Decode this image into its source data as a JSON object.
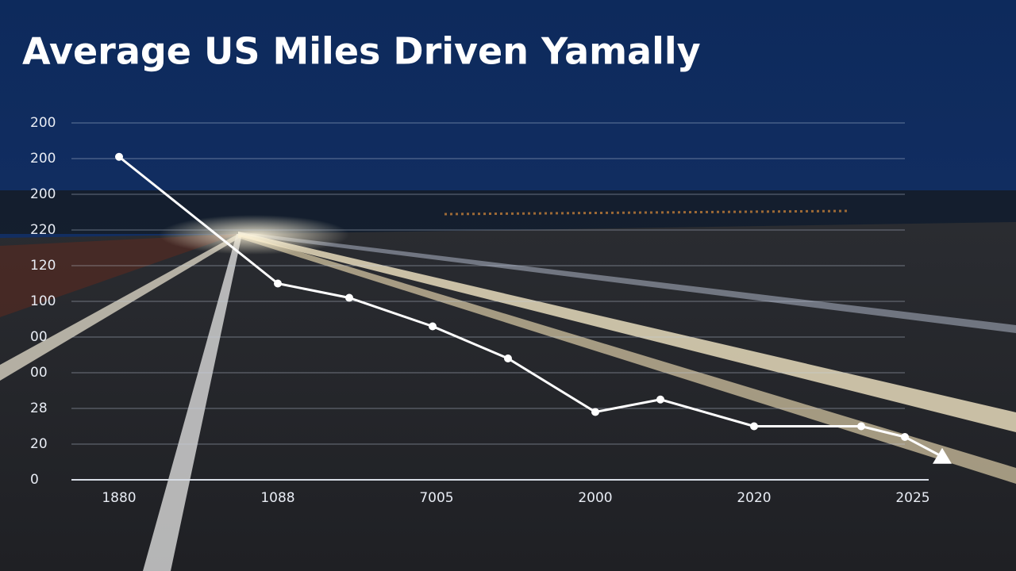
{
  "chart_data": {
    "type": "line",
    "title": "Average US Miles Driven Yamally",
    "x": [
      0,
      1,
      1.45,
      1.975,
      2.45,
      3,
      3.41,
      4,
      4.675,
      4.95,
      5.185
    ],
    "series": [
      {
        "color": "#ffffff",
        "values": [
          181,
          110,
          102,
          86,
          68,
          38,
          45,
          30,
          30,
          24,
          13
        ]
      }
    ],
    "xlim": [
      -0.3,
      5.1
    ],
    "xticks": [
      {
        "value": 0,
        "label": "1880"
      },
      {
        "value": 1,
        "label": "1088"
      },
      {
        "value": 2,
        "label": "7005"
      },
      {
        "value": 3,
        "label": "2000"
      },
      {
        "value": 4,
        "label": "2020"
      },
      {
        "value": 5,
        "label": "2025"
      }
    ],
    "ylim": [
      0,
      200
    ],
    "yticks": [
      0,
      {
        "value": 20,
        "label": "20"
      },
      {
        "value": 40,
        "label": "28"
      },
      {
        "value": 60,
        "label": "00"
      },
      {
        "value": 80,
        "label": "00"
      },
      100,
      120,
      {
        "value": 140,
        "label": "220"
      },
      {
        "value": 160,
        "label": "200"
      },
      {
        "value": 180,
        "label": "200"
      },
      200
    ],
    "grid": true
  }
}
